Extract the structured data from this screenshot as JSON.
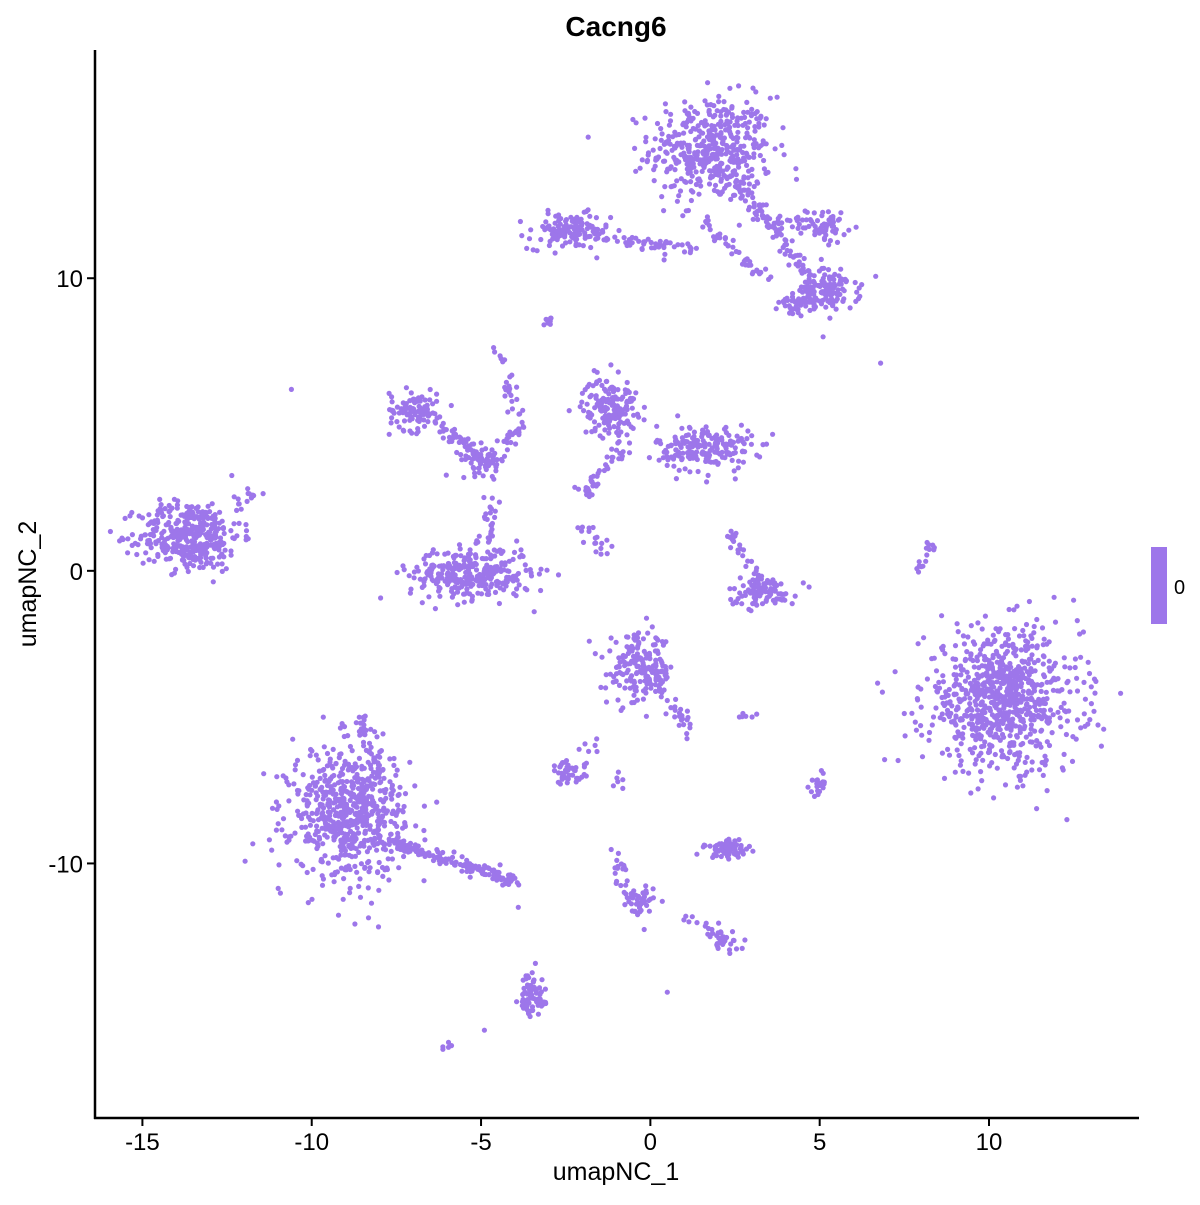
{
  "chart_data": {
    "type": "scatter",
    "title": "Cacng6",
    "xlabel": "umapNC_1",
    "ylabel": "umapNC_2",
    "xlim": [
      -16.4,
      14.4
    ],
    "ylim": [
      -18.7,
      17.8
    ],
    "xticks": [
      -15,
      -10,
      -5,
      0,
      5,
      10
    ],
    "yticks": [
      -10,
      0,
      10
    ],
    "grid": false,
    "point_color": "#9d76ea",
    "legend": {
      "placement": "right",
      "type": "colorbar",
      "labels": [
        "0"
      ],
      "color": "#9d76ea"
    },
    "clusters": [
      {
        "center": [
          1.8,
          14.4
        ],
        "sd": [
          0.9,
          0.9
        ],
        "n": 450
      },
      {
        "center": [
          5.3,
          9.6
        ],
        "sd": [
          0.45,
          0.35
        ],
        "n": 120
      },
      {
        "center": [
          4.4,
          9.2
        ],
        "sd": [
          0.3,
          0.25
        ],
        "n": 50
      },
      {
        "center": [
          5.2,
          11.8
        ],
        "sd": [
          0.3,
          0.3
        ],
        "n": 40
      },
      {
        "center": [
          -2.4,
          11.6
        ],
        "sd": [
          0.6,
          0.3
        ],
        "n": 130
      },
      {
        "center": [
          -13.6,
          1.2
        ],
        "sd": [
          0.75,
          0.6
        ],
        "n": 380
      },
      {
        "center": [
          -7.0,
          5.5
        ],
        "sd": [
          0.35,
          0.35
        ],
        "n": 90
      },
      {
        "center": [
          -4.9,
          3.8
        ],
        "sd": [
          0.35,
          0.25
        ],
        "n": 60
      },
      {
        "center": [
          -5.3,
          -0.1
        ],
        "sd": [
          0.9,
          0.45
        ],
        "n": 320
      },
      {
        "center": [
          -1.2,
          5.6
        ],
        "sd": [
          0.4,
          0.5
        ],
        "n": 160
      },
      {
        "center": [
          1.6,
          4.2
        ],
        "sd": [
          0.7,
          0.4
        ],
        "n": 200
      },
      {
        "center": [
          3.3,
          -0.7
        ],
        "sd": [
          0.5,
          0.25
        ],
        "n": 100
      },
      {
        "center": [
          10.4,
          -4.4
        ],
        "sd": [
          1.15,
          1.2
        ],
        "n": 800
      },
      {
        "center": [
          -0.3,
          -3.4
        ],
        "sd": [
          0.5,
          0.6
        ],
        "n": 170
      },
      {
        "center": [
          -8.9,
          -8.3
        ],
        "sd": [
          0.85,
          1.1
        ],
        "n": 650
      },
      {
        "center": [
          -2.4,
          -6.9
        ],
        "sd": [
          0.25,
          0.2
        ],
        "n": 45
      },
      {
        "center": [
          2.3,
          -9.5
        ],
        "sd": [
          0.35,
          0.15
        ],
        "n": 70
      },
      {
        "center": [
          -3.5,
          -14.7
        ],
        "sd": [
          0.2,
          0.3
        ],
        "n": 50
      },
      {
        "center": [
          5.0,
          -7.3
        ],
        "sd": [
          0.15,
          0.2
        ],
        "n": 20
      },
      {
        "center": [
          2.2,
          -12.7
        ],
        "sd": [
          0.2,
          0.15
        ],
        "n": 25
      },
      {
        "center": [
          -0.3,
          -11.4
        ],
        "sd": [
          0.2,
          0.3
        ],
        "n": 30
      }
    ],
    "trails": [
      {
        "from": [
          2.5,
          13.5
        ],
        "to": [
          4.8,
          9.8
        ],
        "n": 90
      },
      {
        "from": [
          -1.8,
          11.4
        ],
        "to": [
          1.5,
          11.0
        ],
        "n": 50
      },
      {
        "from": [
          1.5,
          12.0
        ],
        "to": [
          3.5,
          10.0
        ],
        "n": 40
      },
      {
        "from": [
          3.5,
          12.0
        ],
        "to": [
          5.5,
          11.8
        ],
        "n": 40
      },
      {
        "from": [
          -6.8,
          5.5
        ],
        "to": [
          -4.6,
          3.6
        ],
        "n": 70
      },
      {
        "from": [
          -4.7,
          2.4
        ],
        "to": [
          -4.7,
          0.5
        ],
        "n": 25
      },
      {
        "from": [
          -4.3,
          4.3
        ],
        "to": [
          -3.6,
          5.1
        ],
        "n": 20
      },
      {
        "from": [
          -4.5,
          7.5
        ],
        "to": [
          -3.8,
          5.0
        ],
        "n": 25
      },
      {
        "from": [
          -2.0,
          2.5
        ],
        "to": [
          -0.8,
          4.2
        ],
        "n": 40
      },
      {
        "from": [
          -2.1,
          1.5
        ],
        "to": [
          -1.2,
          0.6
        ],
        "n": 18
      },
      {
        "from": [
          2.4,
          1.3
        ],
        "to": [
          3.3,
          -0.4
        ],
        "n": 30
      },
      {
        "from": [
          -0.6,
          -2.5
        ],
        "to": [
          1.2,
          -5.5
        ],
        "n": 50
      },
      {
        "from": [
          -7.8,
          -9.2
        ],
        "to": [
          -4.0,
          -10.6
        ],
        "n": 150
      },
      {
        "from": [
          -8.6,
          -5.0
        ],
        "to": [
          -8.0,
          -7.0
        ],
        "n": 40
      },
      {
        "from": [
          -1.0,
          -9.4
        ],
        "to": [
          -0.5,
          -11.8
        ],
        "n": 30
      },
      {
        "from": [
          0.5,
          -11.7
        ],
        "to": [
          2.2,
          -12.5
        ],
        "n": 15
      },
      {
        "from": [
          -3.6,
          -13.6
        ],
        "to": [
          -3.4,
          -15.2
        ],
        "n": 20
      },
      {
        "from": [
          7.8,
          -0.2
        ],
        "to": [
          8.3,
          1.0
        ],
        "n": 15
      },
      {
        "from": [
          -2.9,
          8.6
        ],
        "to": [
          -3.2,
          8.4
        ],
        "n": 10
      },
      {
        "from": [
          -12.4,
          2.0
        ],
        "to": [
          -11.6,
          2.8
        ],
        "n": 15
      },
      {
        "from": [
          -6.0,
          -16.3
        ],
        "to": [
          -5.9,
          -16.1
        ],
        "n": 5
      },
      {
        "from": [
          2.6,
          -5.0
        ],
        "to": [
          3.0,
          -4.9
        ],
        "n": 6
      },
      {
        "from": [
          -1.0,
          -7.0
        ],
        "to": [
          -0.8,
          -7.3
        ],
        "n": 6
      },
      {
        "from": [
          -2.0,
          -6.2
        ],
        "to": [
          -1.6,
          -5.7
        ],
        "n": 6
      }
    ],
    "outliers": [
      [
        -10.6,
        6.2
      ],
      [
        6.8,
        7.1
      ],
      [
        5.1,
        8.0
      ],
      [
        0.5,
        -14.4
      ],
      [
        -4.9,
        -15.7
      ],
      [
        -3.9,
        -11.5
      ],
      [
        -1.0,
        -3.3
      ]
    ]
  }
}
